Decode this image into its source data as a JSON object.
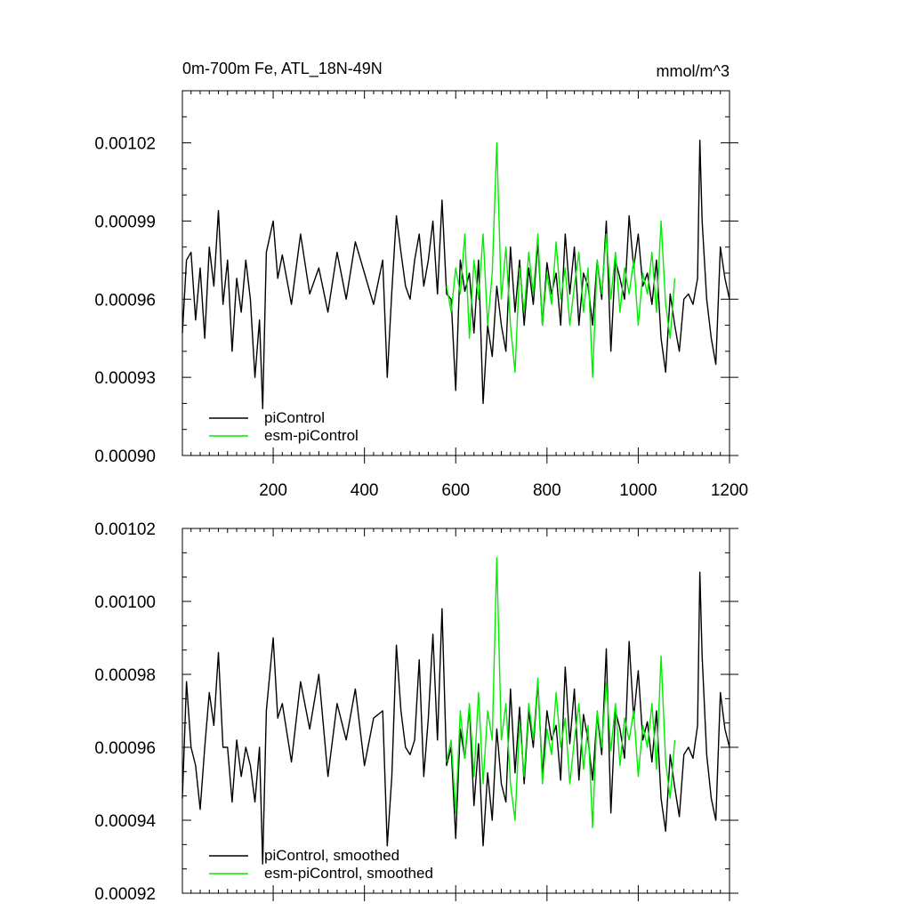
{
  "chart_data": [
    {
      "type": "line",
      "panel": "top",
      "title": "0m-700m Fe, ATL_18N-49N",
      "units": "mmol/m^3",
      "xlim": [
        1,
        1200
      ],
      "ylim": [
        0.0009,
        0.00104
      ],
      "xticks": [
        200,
        400,
        600,
        800,
        1000,
        1200
      ],
      "xtick_labels": [
        "200",
        "400",
        "600",
        "800",
        "1000",
        "1200"
      ],
      "yticks": [
        0.0009,
        0.00093,
        0.00096,
        0.00099,
        0.00102
      ],
      "ytick_labels": [
        "0.00090",
        "0.00093",
        "0.00096",
        "0.00099",
        "0.00102"
      ],
      "legend_position": "bottom-left",
      "series": [
        {
          "name": "piControl",
          "color": "#000000",
          "x": [
            1,
            10,
            20,
            30,
            40,
            50,
            60,
            70,
            80,
            90,
            100,
            110,
            120,
            130,
            140,
            150,
            160,
            170,
            177,
            185,
            200,
            210,
            220,
            240,
            260,
            280,
            300,
            320,
            340,
            360,
            380,
            400,
            420,
            440,
            450,
            460,
            470,
            480,
            490,
            500,
            510,
            520,
            530,
            540,
            550,
            560,
            570,
            580,
            590,
            600,
            610,
            620,
            630,
            640,
            650,
            660,
            670,
            680,
            690,
            700,
            710,
            720,
            730,
            740,
            750,
            760,
            770,
            780,
            790,
            800,
            810,
            820,
            830,
            840,
            850,
            860,
            870,
            880,
            890,
            900,
            910,
            920,
            930,
            940,
            950,
            960,
            970,
            980,
            990,
            1000,
            1010,
            1020,
            1030,
            1040,
            1050,
            1060,
            1070,
            1080,
            1090,
            1100,
            1110,
            1120,
            1130,
            1135,
            1140,
            1150,
            1160,
            1170,
            1180,
            1190,
            1200
          ],
          "values": [
            0.000947,
            0.000975,
            0.000978,
            0.000952,
            0.000972,
            0.000945,
            0.00098,
            0.000965,
            0.000994,
            0.000958,
            0.000975,
            0.00094,
            0.000968,
            0.000955,
            0.000975,
            0.00096,
            0.00093,
            0.000952,
            0.000918,
            0.000978,
            0.00099,
            0.000968,
            0.000977,
            0.000958,
            0.000985,
            0.000962,
            0.000972,
            0.000955,
            0.000978,
            0.00096,
            0.000982,
            0.00097,
            0.000958,
            0.000975,
            0.00093,
            0.000963,
            0.000992,
            0.000978,
            0.000965,
            0.00096,
            0.000975,
            0.000985,
            0.000965,
            0.000975,
            0.00099,
            0.000962,
            0.000998,
            0.000962,
            0.00096,
            0.000925,
            0.000975,
            0.000963,
            0.00097,
            0.000947,
            0.000975,
            0.00092,
            0.00095,
            0.000938,
            0.000965,
            0.00095,
            0.00094,
            0.00098,
            0.000955,
            0.000975,
            0.00095,
            0.000972,
            0.000958,
            0.000982,
            0.00095,
            0.000974,
            0.000962,
            0.00097,
            0.00095,
            0.000985,
            0.000962,
            0.00098,
            0.00095,
            0.00097,
            0.000965,
            0.00095,
            0.000975,
            0.00096,
            0.00099,
            0.00094,
            0.000975,
            0.000968,
            0.00096,
            0.000992,
            0.000972,
            0.000985,
            0.000965,
            0.00097,
            0.000958,
            0.000975,
            0.000945,
            0.000932,
            0.000962,
            0.00095,
            0.00094,
            0.00096,
            0.000962,
            0.000958,
            0.000968,
            0.001021,
            0.00099,
            0.00096,
            0.000945,
            0.000935,
            0.00098,
            0.000968,
            0.00096
          ]
        },
        {
          "name": "esm-piControl",
          "color": "#00ee00",
          "x": [
            580,
            590,
            600,
            610,
            620,
            630,
            640,
            650,
            660,
            670,
            680,
            690,
            700,
            710,
            720,
            730,
            740,
            750,
            760,
            770,
            780,
            790,
            800,
            810,
            820,
            830,
            840,
            850,
            860,
            870,
            880,
            890,
            900,
            910,
            920,
            930,
            940,
            950,
            960,
            970,
            980,
            990,
            1000,
            1010,
            1020,
            1030,
            1040,
            1050,
            1060,
            1070,
            1080
          ],
          "values": [
            0.000965,
            0.000955,
            0.000972,
            0.000962,
            0.000985,
            0.000945,
            0.000975,
            0.00096,
            0.000985,
            0.00095,
            0.00097,
            0.00102,
            0.00096,
            0.00098,
            0.00095,
            0.000932,
            0.000972,
            0.000955,
            0.000978,
            0.000962,
            0.000985,
            0.00095,
            0.00097,
            0.000958,
            0.000982,
            0.00096,
            0.000972,
            0.00095,
            0.000965,
            0.000978,
            0.000955,
            0.000972,
            0.00093,
            0.000975,
            0.000962,
            0.000985,
            0.00096,
            0.000978,
            0.000955,
            0.000972,
            0.000962,
            0.000975,
            0.00095,
            0.00097,
            0.000962,
            0.000978,
            0.000955,
            0.00099,
            0.000958,
            0.000945,
            0.000968
          ]
        }
      ]
    },
    {
      "type": "line",
      "panel": "bottom",
      "title": "",
      "xlim": [
        1,
        1200
      ],
      "ylim": [
        0.00092,
        0.00102
      ],
      "xticks": [
        200,
        400,
        600,
        800,
        1000,
        1200
      ],
      "yticks": [
        0.00092,
        0.00094,
        0.00096,
        0.00098,
        0.001,
        0.00102
      ],
      "ytick_labels": [
        "0.00092",
        "0.00094",
        "0.00096",
        "0.00098",
        "0.00100",
        "0.00102"
      ],
      "legend_position": "bottom-left",
      "series": [
        {
          "name": "piControl, smoothed",
          "color": "#000000",
          "x": [
            1,
            10,
            20,
            30,
            40,
            50,
            60,
            70,
            80,
            90,
            100,
            110,
            120,
            130,
            140,
            150,
            160,
            170,
            177,
            185,
            200,
            210,
            220,
            240,
            260,
            280,
            300,
            320,
            340,
            360,
            380,
            400,
            420,
            440,
            450,
            460,
            470,
            480,
            490,
            500,
            510,
            520,
            530,
            540,
            550,
            560,
            570,
            580,
            590,
            600,
            610,
            620,
            630,
            640,
            650,
            660,
            670,
            680,
            690,
            700,
            710,
            720,
            730,
            740,
            750,
            760,
            770,
            780,
            790,
            800,
            810,
            820,
            830,
            840,
            850,
            860,
            870,
            880,
            890,
            900,
            910,
            920,
            930,
            940,
            950,
            960,
            970,
            980,
            990,
            1000,
            1010,
            1020,
            1030,
            1040,
            1050,
            1060,
            1070,
            1080,
            1090,
            1100,
            1110,
            1120,
            1130,
            1135,
            1140,
            1150,
            1160,
            1170,
            1180,
            1190,
            1200
          ],
          "values": [
            0.000946,
            0.000978,
            0.00096,
            0.000955,
            0.000943,
            0.00096,
            0.000975,
            0.000966,
            0.000986,
            0.00096,
            0.00096,
            0.000945,
            0.000962,
            0.000952,
            0.00096,
            0.000955,
            0.000945,
            0.00096,
            0.000928,
            0.00097,
            0.00099,
            0.000968,
            0.000972,
            0.000956,
            0.000978,
            0.000965,
            0.00098,
            0.000952,
            0.000972,
            0.000962,
            0.000976,
            0.000955,
            0.000968,
            0.00097,
            0.000933,
            0.000952,
            0.000988,
            0.00097,
            0.00096,
            0.000958,
            0.000962,
            0.000984,
            0.000952,
            0.000968,
            0.000991,
            0.000962,
            0.000998,
            0.000955,
            0.00096,
            0.000935,
            0.000965,
            0.000957,
            0.000971,
            0.000944,
            0.000961,
            0.000933,
            0.000953,
            0.00094,
            0.000965,
            0.00095,
            0.000945,
            0.000976,
            0.000953,
            0.000971,
            0.00095,
            0.00097,
            0.00096,
            0.000978,
            0.000952,
            0.00097,
            0.000962,
            0.000966,
            0.000951,
            0.000982,
            0.000961,
            0.000976,
            0.000951,
            0.000969,
            0.000962,
            0.000951,
            0.000969,
            0.000958,
            0.000987,
            0.000942,
            0.00097,
            0.000965,
            0.000957,
            0.000989,
            0.000968,
            0.000981,
            0.000962,
            0.000967,
            0.000956,
            0.00097,
            0.000946,
            0.000937,
            0.000958,
            0.000949,
            0.000941,
            0.000958,
            0.00096,
            0.000957,
            0.000966,
            0.001008,
            0.000985,
            0.000958,
            0.000946,
            0.00094,
            0.000975,
            0.000965,
            0.00096
          ]
        },
        {
          "name": "esm-piControl, smoothed",
          "color": "#00ee00",
          "x": [
            580,
            590,
            600,
            610,
            620,
            630,
            640,
            650,
            660,
            670,
            680,
            690,
            700,
            710,
            720,
            730,
            740,
            750,
            760,
            770,
            780,
            790,
            800,
            810,
            820,
            830,
            840,
            850,
            860,
            870,
            880,
            890,
            900,
            910,
            920,
            930,
            940,
            950,
            960,
            970,
            980,
            990,
            1000,
            1010,
            1020,
            1030,
            1040,
            1050,
            1060,
            1070,
            1080
          ],
          "values": [
            0.000956,
            0.000962,
            0.000942,
            0.00097,
            0.000957,
            0.000972,
            0.000952,
            0.000975,
            0.00095,
            0.00097,
            0.000962,
            0.001012,
            0.000962,
            0.000972,
            0.00095,
            0.00094,
            0.000967,
            0.000952,
            0.000972,
            0.000962,
            0.000979,
            0.00095,
            0.000965,
            0.000958,
            0.000975,
            0.00096,
            0.000968,
            0.00095,
            0.000962,
            0.000972,
            0.000954,
            0.000966,
            0.000938,
            0.00097,
            0.00096,
            0.000978,
            0.000959,
            0.000972,
            0.000955,
            0.000968,
            0.000962,
            0.00097,
            0.000952,
            0.000966,
            0.00096,
            0.000972,
            0.000954,
            0.000985,
            0.000956,
            0.000946,
            0.000962
          ]
        }
      ]
    }
  ]
}
